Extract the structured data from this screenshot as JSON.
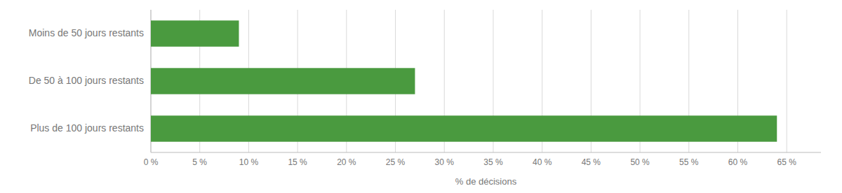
{
  "chart_data": {
    "type": "bar",
    "orientation": "horizontal",
    "categories": [
      "Moins de 50 jours restants",
      "De 50 à 100 jours restants",
      "Plus de 100 jours restants"
    ],
    "values": [
      9,
      27,
      64
    ],
    "color": "#4a9a3f",
    "xlabel": "% de décisions",
    "xlim": [
      0,
      68.5
    ],
    "xticks": [
      {
        "value": 0,
        "label": "0 %"
      },
      {
        "value": 5,
        "label": "5 %"
      },
      {
        "value": 10,
        "label": "10 %"
      },
      {
        "value": 15,
        "label": "15 %"
      },
      {
        "value": 20,
        "label": "20 %"
      },
      {
        "value": 25,
        "label": "25 %"
      },
      {
        "value": 30,
        "label": "30 %"
      },
      {
        "value": 35,
        "label": "35 %"
      },
      {
        "value": 40,
        "label": "40 %"
      },
      {
        "value": 45,
        "label": "45 %"
      },
      {
        "value": 50,
        "label": "50 %"
      },
      {
        "value": 55,
        "label": "55 %"
      },
      {
        "value": 60,
        "label": "60 %"
      },
      {
        "value": 65,
        "label": "65 %"
      }
    ],
    "grid": true
  }
}
